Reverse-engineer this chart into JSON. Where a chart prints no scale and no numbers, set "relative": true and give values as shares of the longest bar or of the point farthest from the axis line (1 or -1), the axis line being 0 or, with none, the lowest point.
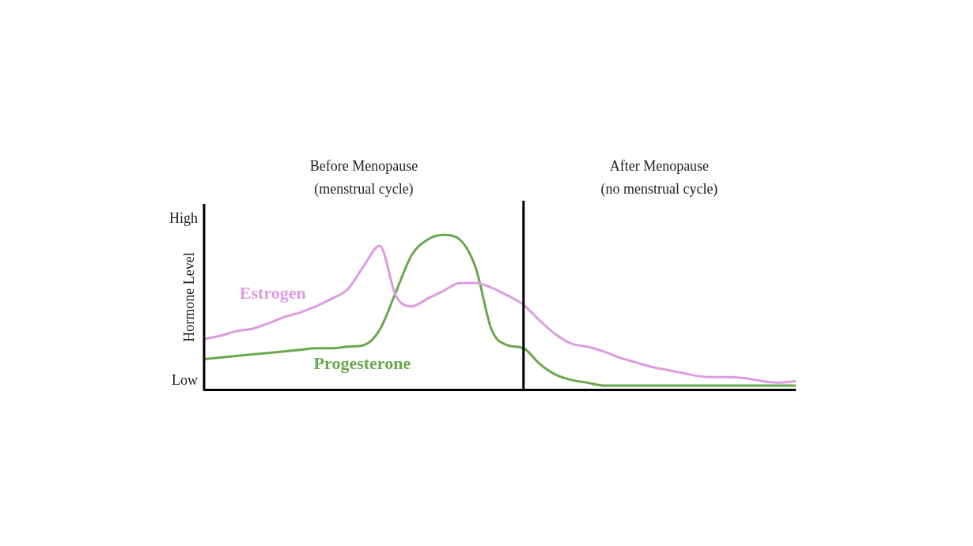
{
  "chart_data": {
    "type": "line",
    "ylabel": "Hormone Level",
    "annotations": [
      "Before Menopause\n(menstrual cycle)",
      "After Menopause\n(no menstrual cycle)",
      "High",
      "Low"
    ],
    "categories": [
      null,
      null,
      null,
      null,
      null,
      null,
      null,
      null,
      null,
      null,
      null,
      null,
      null,
      null,
      null,
      null,
      null,
      null,
      null,
      null,
      null,
      null,
      null,
      null,
      null,
      null,
      null,
      null,
      null,
      null,
      null,
      null,
      null,
      null,
      null,
      null,
      null,
      null
    ],
    "series": [
      {
        "name": "Estrogen",
        "color": "#dd9be0",
        "values": [
          0.33,
          0.35,
          0.38,
          0.395,
          0.43,
          0.47,
          0.5,
          0.54,
          0.59,
          0.65,
          0.8,
          0.93,
          0.61,
          0.54,
          0.59,
          0.64,
          0.69,
          0.69,
          0.66,
          0.61,
          0.55,
          0.45,
          0.36,
          0.3,
          0.28,
          0.25,
          0.21,
          0.18,
          0.15,
          0.13,
          0.11,
          0.09,
          0.084,
          0.084,
          0.075,
          0.057,
          0.048,
          0.057
        ]
      },
      {
        "name": "Progesterone",
        "color": "#6aa84f",
        "values": [
          0.2,
          0.21,
          0.22,
          0.23,
          0.24,
          0.25,
          0.26,
          0.27,
          0.27,
          0.28,
          0.29,
          0.39,
          0.63,
          0.87,
          0.97,
          1,
          0.97,
          0.79,
          0.39,
          0.29,
          0.27,
          0.17,
          0.1,
          0.066,
          0.048,
          0.03,
          0.03,
          0.03,
          0.03,
          0.03,
          0.03,
          0.03,
          0.03,
          0.03,
          0.03,
          0.03,
          0.03,
          0.03
        ]
      }
    ],
    "relative": true,
    "grid": false,
    "legend": false,
    "marker": "none",
    "line_style": "solid"
  }
}
